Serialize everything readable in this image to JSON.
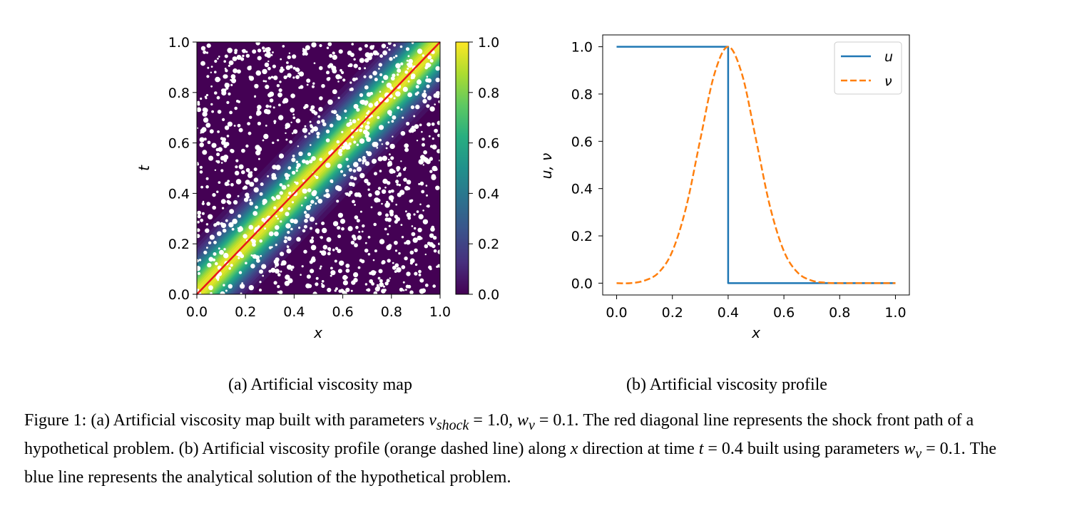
{
  "chart_data": [
    {
      "type": "heatmap",
      "subcaption": "(a) Artificial viscosity map",
      "xlabel": "x",
      "ylabel": "t",
      "xlim": [
        0.0,
        1.0
      ],
      "ylim": [
        0.0,
        1.0
      ],
      "xticks": [
        "0.0",
        "0.2",
        "0.4",
        "0.6",
        "0.8",
        "1.0"
      ],
      "yticks": [
        "0.0",
        "0.2",
        "0.4",
        "0.6",
        "0.8",
        "1.0"
      ],
      "colorbar": {
        "range": [
          0.0,
          1.0
        ],
        "ticks": [
          "0.0",
          "0.2",
          "0.4",
          "0.6",
          "0.8",
          "1.0"
        ],
        "colormap": "viridis"
      },
      "shock_line": {
        "x": [
          0.0,
          1.0
        ],
        "t": [
          0.0,
          1.0
        ],
        "color": "#e8161b"
      },
      "field": {
        "v_shock": 1.0,
        "w_nu": 0.1
      }
    },
    {
      "type": "line",
      "subcaption": "(b) Artificial viscosity profile",
      "xlabel": "x",
      "ylabel": "u, ν",
      "xlim": [
        -0.05,
        1.05
      ],
      "ylim": [
        -0.05,
        1.05
      ],
      "xticks": [
        "0.0",
        "0.2",
        "0.4",
        "0.6",
        "0.8",
        "1.0"
      ],
      "yticks": [
        "0.0",
        "0.2",
        "0.4",
        "0.6",
        "0.8",
        "1.0"
      ],
      "legend_position": "top-right",
      "series": [
        {
          "name": "u",
          "color": "#1f77b4",
          "style": "solid",
          "x": [
            0.0,
            0.4,
            0.4,
            1.0
          ],
          "y": [
            1.0,
            1.0,
            0.0,
            0.0
          ]
        },
        {
          "name": "ν",
          "color": "#ff7f0e",
          "style": "dashed",
          "x": [
            0.0,
            0.05,
            0.1,
            0.15,
            0.2,
            0.25,
            0.3,
            0.35,
            0.4,
            0.45,
            0.5,
            0.55,
            0.6,
            0.65,
            0.7,
            0.75,
            0.8,
            0.85,
            0.9,
            0.95,
            1.0
          ],
          "y": [
            0.0,
            0.0,
            0.011,
            0.044,
            0.135,
            0.325,
            0.607,
            0.882,
            1.0,
            0.882,
            0.607,
            0.325,
            0.135,
            0.044,
            0.011,
            0.002,
            0.0,
            0.0,
            0.0,
            0.0,
            0.0
          ]
        }
      ]
    }
  ],
  "caption": {
    "p1": "Figure 1: (a) Artificial viscosity map built with parameters ",
    "m1": "v",
    "m1sub": "shock",
    "p2": " = 1.0, ",
    "m2": "w",
    "m2sub": "ν",
    "p3": " = 0.1. The red diagonal line represents the shock front path of a hypothetical problem. (b) Artificial viscosity profile (orange dashed line) along ",
    "m3": "x",
    "p4": " direction at time ",
    "m4": "t",
    "p5": " = 0.4 built using parameters ",
    "m5": "w",
    "m5sub": "ν",
    "p6": " = 0.1. The blue line represents the analytical solution of the hypothetical problem."
  }
}
